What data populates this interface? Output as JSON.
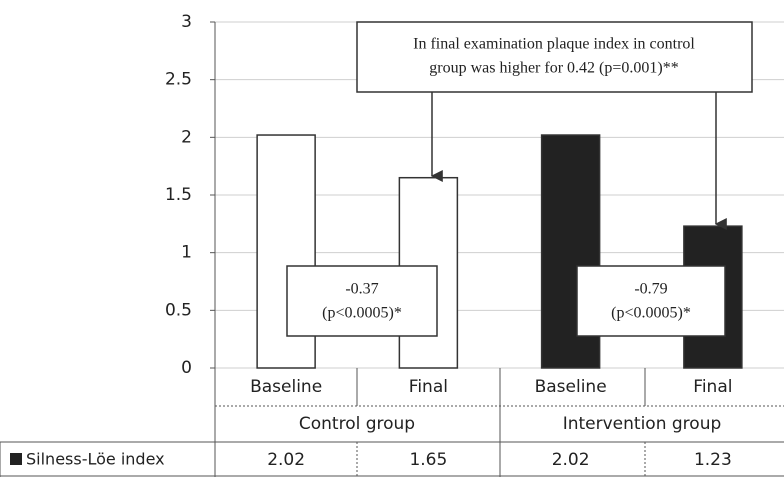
{
  "chart_data": {
    "type": "bar",
    "categories": [
      "Baseline",
      "Final",
      "Baseline",
      "Final"
    ],
    "groups": [
      "Control group",
      "Intervention group"
    ],
    "series": [
      {
        "name": "Silness-Löe index",
        "color": "#222222",
        "values": [
          2.02,
          1.65,
          2.02,
          1.23
        ],
        "colors": [
          "#ffffff",
          "#ffffff",
          "#222222",
          "#222222"
        ]
      }
    ],
    "ylim": [
      0,
      3
    ],
    "yticks": [
      0,
      0.5,
      1,
      1.5,
      2,
      2.5,
      3
    ],
    "grid": true,
    "annotations": [
      {
        "lines": [
          "In final examination plaque index in control",
          "group was higher for 0.42 (p=0.001)**"
        ]
      },
      {
        "lines": [
          "-0.37",
          "(p<0.0005)*"
        ]
      },
      {
        "lines": [
          "-0.79",
          "(p<0.0005)*"
        ]
      }
    ]
  }
}
